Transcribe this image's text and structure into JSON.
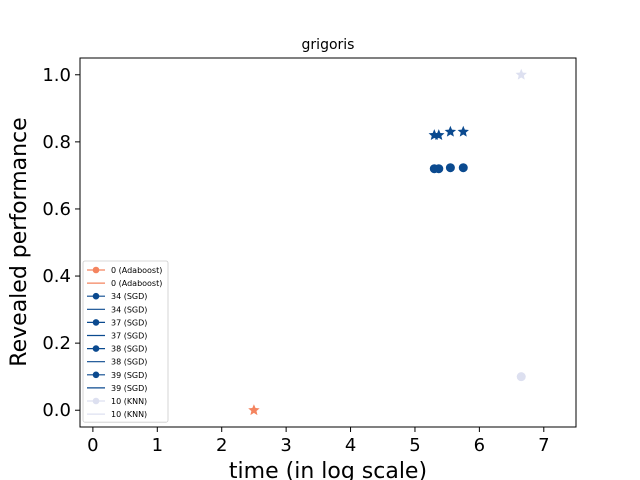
{
  "chart_data": {
    "type": "scatter",
    "title": "grigoris",
    "xlabel": "time (in log scale)",
    "ylabel": "Revealed performance",
    "xlim": [
      -0.2,
      7.5
    ],
    "ylim": [
      -0.05,
      1.05
    ],
    "xticks": [
      0,
      1,
      2,
      3,
      4,
      5,
      6,
      7
    ],
    "yticks": [
      0.0,
      0.2,
      0.4,
      0.6,
      0.8,
      1.0
    ],
    "ytick_labels": [
      "0.0",
      "0.2",
      "0.4",
      "0.6",
      "0.8",
      "1.0"
    ],
    "grid": false,
    "legend_position": "lower-left",
    "legend": [
      {
        "label": "0 (Adaboost)",
        "kind": "marker",
        "color": "#f4845f"
      },
      {
        "label": "0 (Adaboost)",
        "kind": "line",
        "color": "#f4845f"
      },
      {
        "label": "34 (SGD)",
        "kind": "marker",
        "color": "#0b4a8f"
      },
      {
        "label": "34 (SGD)",
        "kind": "line",
        "color": "#0b4a8f"
      },
      {
        "label": "37 (SGD)",
        "kind": "marker",
        "color": "#0b4a8f"
      },
      {
        "label": "37 (SGD)",
        "kind": "line",
        "color": "#0b4a8f"
      },
      {
        "label": "38 (SGD)",
        "kind": "marker",
        "color": "#0b4a8f"
      },
      {
        "label": "38 (SGD)",
        "kind": "line",
        "color": "#0b4a8f"
      },
      {
        "label": "39 (SGD)",
        "kind": "marker",
        "color": "#0b4a8f"
      },
      {
        "label": "39 (SGD)",
        "kind": "line",
        "color": "#0b4a8f"
      },
      {
        "label": "10 (KNN)",
        "kind": "marker",
        "color": "#dde0f0"
      },
      {
        "label": "10 (KNN)",
        "kind": "line",
        "color": "#dde0f0"
      }
    ],
    "series": [
      {
        "name": "0 (Adaboost)",
        "color": "#f4845f",
        "circles": [],
        "stars": [
          {
            "x": 2.5,
            "y": 0.0
          }
        ]
      },
      {
        "name": "34 (SGD)",
        "color": "#0b4a8f",
        "circles": [
          {
            "x": 5.3,
            "y": 0.72
          }
        ],
        "stars": [
          {
            "x": 5.3,
            "y": 0.82
          }
        ]
      },
      {
        "name": "37 (SGD)",
        "color": "#0b4a8f",
        "circles": [
          {
            "x": 5.37,
            "y": 0.72
          }
        ],
        "stars": [
          {
            "x": 5.37,
            "y": 0.82
          }
        ]
      },
      {
        "name": "38 (SGD)",
        "color": "#0b4a8f",
        "circles": [
          {
            "x": 5.55,
            "y": 0.723
          }
        ],
        "stars": [
          {
            "x": 5.55,
            "y": 0.83
          }
        ]
      },
      {
        "name": "39 (SGD)",
        "color": "#0b4a8f",
        "circles": [
          {
            "x": 5.75,
            "y": 0.723
          }
        ],
        "stars": [
          {
            "x": 5.75,
            "y": 0.83
          }
        ]
      },
      {
        "name": "10 (KNN)",
        "color": "#dde0f0",
        "circles": [
          {
            "x": 6.65,
            "y": 0.1
          }
        ],
        "stars": [
          {
            "x": 6.65,
            "y": 1.0
          }
        ]
      }
    ]
  }
}
